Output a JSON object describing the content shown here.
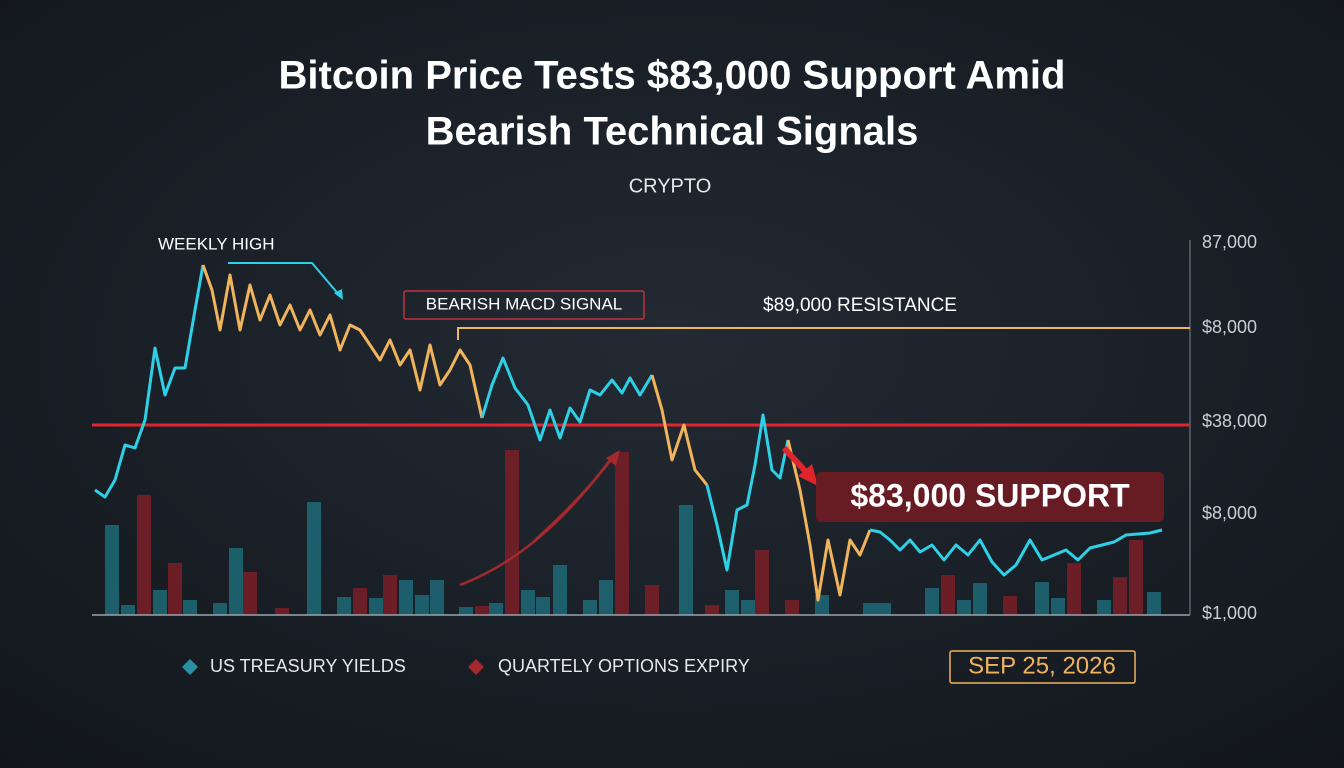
{
  "header": {
    "title_lines": [
      "Bitcoin Price Tests $83,000 Support Amid",
      "Bearish Technical Signals"
    ],
    "category": "CRYPTO"
  },
  "annotations": {
    "weekly_high": "WEEKLY HIGH",
    "macd": "BEARISH MACD SIGNAL",
    "resistance": "$89,000 RESISTANCE",
    "support": "$83,000 SUPPORT"
  },
  "axis_labels": [
    "87,000",
    "$8,000",
    "$38,000",
    "$8,000",
    "$1,000"
  ],
  "legend": [
    "US TREASURY YIELDS",
    "QUARTELY OPTIONS EXPIRY"
  ],
  "date": "SEP 25, 2026"
}
